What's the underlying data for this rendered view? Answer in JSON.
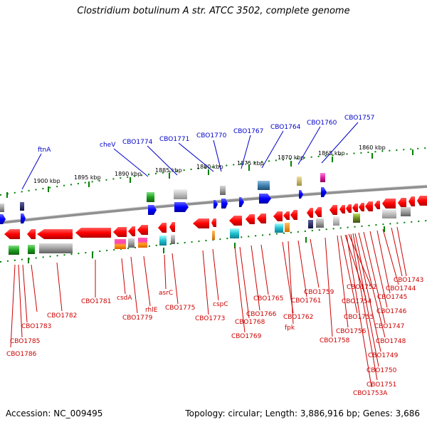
{
  "title": "Clostridium botulinum A str. ATCC 3502, complete genome",
  "footer": {
    "accession": "Accession: NC_009495",
    "topology": "Topology: circular; Length: 3,886,916 bp; Genes: 3,686"
  },
  "scale_labels": [
    "1900 kbp",
    "1895 kbp",
    "1890 kbp",
    "1885 kbp",
    "1880 kbp",
    "1875 kbp",
    "1870 kbp",
    "1865 kbp",
    "1860 kbp"
  ],
  "top_gene_labels": [
    "ftnA",
    "cheV",
    "CBO1774",
    "CBO1771",
    "CBO1770",
    "CBO1767",
    "CBO1764",
    "CBO1760",
    "CBO1757"
  ],
  "bottom_gene_labels": [
    "CBO1786",
    "CBO1785",
    "CBO1783",
    "CBO1782",
    "CBO1781",
    "csdA",
    "CBO1779",
    "rhlE",
    "asrC",
    "CBO1775",
    "CBO1773",
    "cspC",
    "CBO1769",
    "CBO1768",
    "CBO1766",
    "CBO1765",
    "CBO1762",
    "fpk",
    "CBO1761",
    "CBO1759",
    "CBO1758",
    "CBO1756",
    "CBO1755",
    "CBO1754",
    "CBO1753A",
    "CBO1752",
    "CBO1751",
    "CBO1750",
    "CBO1749",
    "CBO1748",
    "CBO1747",
    "CBO1746",
    "CBO1745",
    "CBO1744",
    "CBO1743"
  ],
  "colors": {
    "reverse_gene": "#ff0000",
    "forward_gene": "#0000ff",
    "backbone": "#808080",
    "tick": "#008000",
    "top_label": "#0000cc",
    "bottom_label": "#cc0000"
  }
}
